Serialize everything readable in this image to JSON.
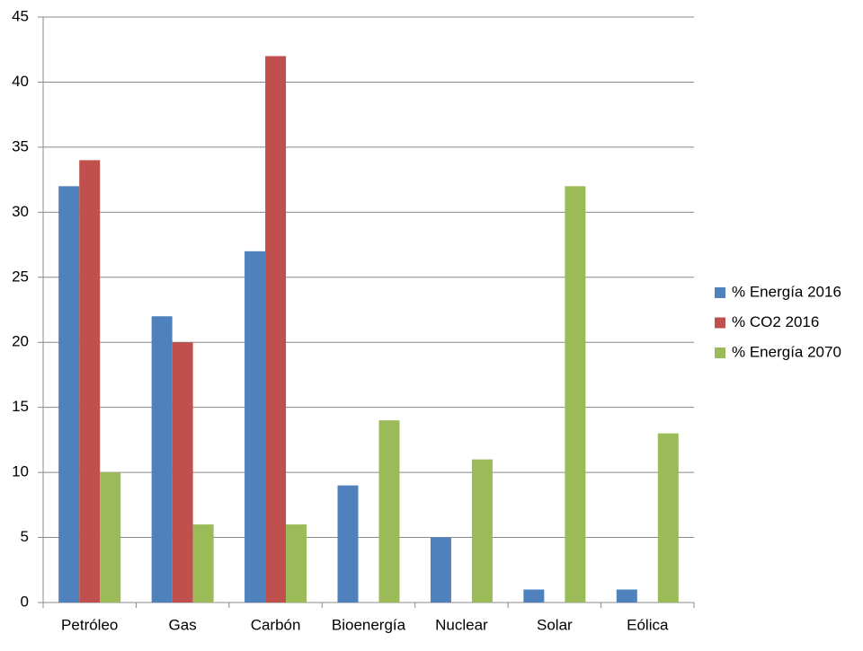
{
  "chart_data": {
    "type": "bar",
    "categories": [
      "Petróleo",
      "Gas",
      "Carbón",
      "Bioenergía",
      "Nuclear",
      "Solar",
      "Eólica"
    ],
    "series": [
      {
        "name": "% Energía 2016",
        "color": "#4f81bd",
        "values": [
          32,
          22,
          27,
          9,
          5,
          1,
          1
        ]
      },
      {
        "name": "% CO2 2016",
        "color": "#c0504d",
        "values": [
          34,
          20,
          42,
          null,
          null,
          null,
          null
        ]
      },
      {
        "name": "% Energía 2070",
        "color": "#9bbb59",
        "values": [
          10,
          6,
          6,
          14,
          11,
          32,
          13
        ]
      }
    ],
    "ylim": [
      0,
      45
    ],
    "yticks": [
      0,
      5,
      10,
      15,
      20,
      25,
      30,
      35,
      40,
      45
    ],
    "grid": true,
    "legend": "right"
  }
}
